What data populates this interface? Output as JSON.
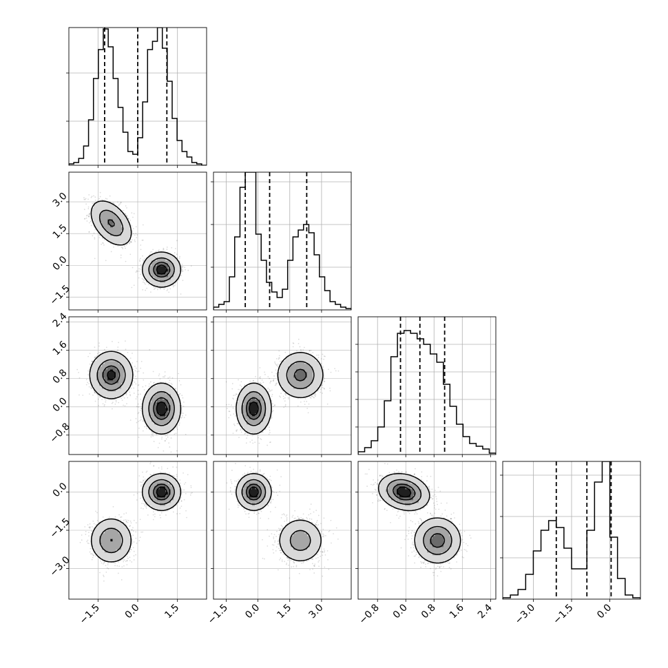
{
  "chart_data": {
    "type": "corner",
    "n_params": 4,
    "grid": true,
    "colors": {
      "line": "#000000",
      "grid": "#b0b0b0",
      "scatter": "#000000",
      "background": "#ffffff"
    },
    "ranges": [
      {
        "min": -2.6,
        "max": 2.6
      },
      {
        "min": -2.1,
        "max": 4.4
      },
      {
        "min": -1.35,
        "max": 2.55
      },
      {
        "min": -4.2,
        "max": 1.2
      }
    ],
    "ticks": [
      {
        "values": [
          -1.5,
          0.0,
          1.5
        ],
        "labels": [
          "−1.5",
          "0.0",
          "1.5"
        ]
      },
      {
        "values": [
          -1.5,
          0.0,
          1.5,
          3.0
        ],
        "labels": [
          "−1.5",
          "0.0",
          "1.5",
          "3.0"
        ]
      },
      {
        "values": [
          -0.8,
          0.0,
          0.8,
          1.6,
          2.4
        ],
        "labels": [
          "−0.8",
          "0.0",
          "0.8",
          "1.6",
          "2.4"
        ]
      },
      {
        "values": [
          -3.0,
          -1.5,
          0.0
        ],
        "labels": [
          "−3.0",
          "−1.5",
          "0.0"
        ]
      }
    ],
    "hist_ytick_fractions": [
      [
        0.32,
        0.67
      ],
      [
        0.31,
        0.62,
        0.93
      ],
      [
        0.2,
        0.4,
        0.6,
        0.8
      ],
      [
        0.3,
        0.6,
        0.9
      ]
    ],
    "quantiles": [
      [
        -1.25,
        0.0,
        1.1
      ],
      [
        -0.6,
        0.55,
        2.3
      ],
      [
        -0.15,
        0.4,
        1.1
      ],
      [
        -2.1,
        -0.9,
        0.05
      ]
    ],
    "histograms": [
      {
        "bins": [
          -2.6,
          2.6
        ],
        "counts": [
          0.01,
          0.02,
          0.05,
          0.14,
          0.33,
          0.63,
          0.84,
          0.99,
          0.86,
          0.63,
          0.42,
          0.24,
          0.1,
          0.08,
          0.2,
          0.46,
          0.84,
          0.9,
          1.0,
          0.85,
          0.61,
          0.34,
          0.18,
          0.1,
          0.06,
          0.02,
          0.01,
          0.0
        ]
      },
      {
        "bins": [
          -2.1,
          4.4
        ],
        "counts": [
          0.02,
          0.04,
          0.06,
          0.24,
          0.53,
          0.89,
          1.0,
          1.0,
          0.55,
          0.36,
          0.2,
          0.13,
          0.09,
          0.15,
          0.36,
          0.53,
          0.58,
          0.62,
          0.56,
          0.4,
          0.24,
          0.14,
          0.06,
          0.04,
          0.02,
          0.01
        ]
      },
      {
        "bins": [
          -1.35,
          2.55
        ],
        "counts": [
          0.02,
          0.05,
          0.1,
          0.2,
          0.39,
          0.71,
          0.88,
          0.9,
          0.88,
          0.84,
          0.8,
          0.73,
          0.67,
          0.51,
          0.35,
          0.22,
          0.13,
          0.08,
          0.06,
          0.04,
          0.01
        ]
      },
      {
        "bins": [
          -4.2,
          1.2
        ],
        "counts": [
          0.01,
          0.03,
          0.07,
          0.18,
          0.35,
          0.5,
          0.57,
          0.52,
          0.37,
          0.22,
          0.22,
          0.5,
          0.85,
          1.0,
          0.45,
          0.15,
          0.03,
          0.01
        ]
      }
    ],
    "mixture": {
      "weights": [
        0.5,
        0.5
      ],
      "means": [
        [
          -1.0,
          2.0,
          0.9,
          -1.9
        ],
        [
          0.9,
          -0.2,
          -0.05,
          0.0
        ]
      ],
      "sds": [
        [
          0.4,
          0.55,
          0.33,
          0.45
        ],
        [
          0.35,
          0.4,
          0.35,
          0.35
        ]
      ],
      "correlations": [
        {
          "pair": [
            0,
            1
          ],
          "rho": [
            -0.45,
            0.0
          ]
        },
        {
          "pair": [
            2,
            3
          ],
          "rho": [
            0.0,
            -0.2
          ]
        }
      ]
    },
    "contour_levels": [
      0.12,
      0.39,
      0.68,
      0.86
    ]
  }
}
